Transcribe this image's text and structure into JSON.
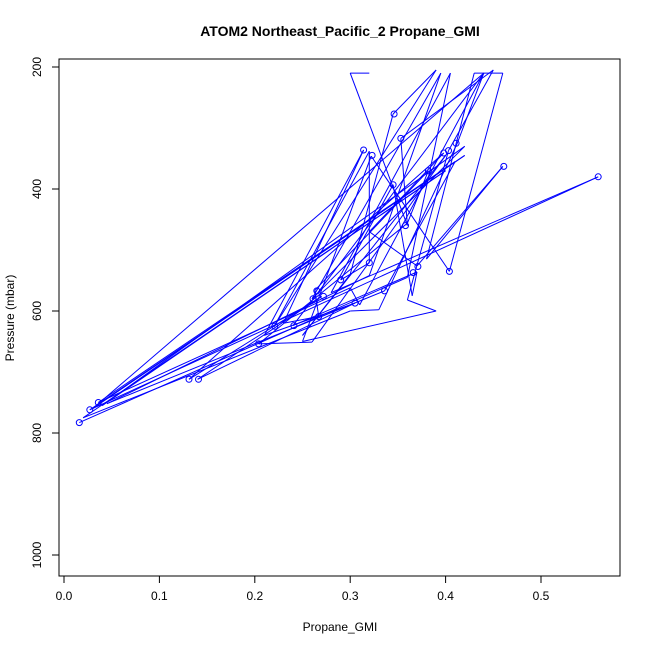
{
  "chart_data": {
    "type": "line",
    "title": "ATOM2 Northeast_Pacific_2 Propane_GMI",
    "xlabel": "Propane_GMI",
    "ylabel": "Pressure (mbar)",
    "xlim": [
      0.0,
      0.56
    ],
    "ylim": [
      1035,
      195
    ],
    "y_reversed": true,
    "x_ticks": [
      0.0,
      0.1,
      0.2,
      0.3,
      0.4,
      0.5
    ],
    "x_tick_labels": [
      "0.0",
      "0.1",
      "0.2",
      "0.3",
      "0.4",
      "0.5"
    ],
    "y_ticks": [
      200,
      400,
      600,
      800,
      1000
    ],
    "y_tick_labels": [
      "200",
      "400",
      "600",
      "800",
      "1000"
    ],
    "grid": false,
    "series_color": "#0000ff",
    "series": [
      {
        "points": [
          [
            0.016,
            783
          ],
          [
            0.36,
            545
          ],
          [
            0.405,
            210
          ],
          [
            0.28,
            570
          ],
          [
            0.56,
            380
          ],
          [
            0.027,
            762
          ],
          [
            0.42,
            345
          ],
          [
            0.03,
            760
          ],
          [
            0.44,
            210
          ],
          [
            0.31,
            590
          ],
          [
            0.3,
            562
          ],
          [
            0.036,
            750
          ],
          [
            0.41,
            355
          ],
          [
            0.336,
            567
          ],
          [
            0.045,
            752
          ],
          [
            0.32,
            542
          ],
          [
            0.395,
            210
          ],
          [
            0.26,
            580
          ],
          [
            0.42,
            330
          ],
          [
            0.04,
            755
          ],
          [
            0.4,
            370
          ],
          [
            0.02,
            775
          ],
          [
            0.3,
            600
          ],
          [
            0.33,
            598
          ],
          [
            0.412,
            326
          ],
          [
            0.44,
            210
          ],
          [
            0.24,
            624
          ],
          [
            0.37,
            536
          ],
          [
            0.365,
            575
          ],
          [
            0.345,
            393
          ],
          [
            0.29,
            549
          ],
          [
            0.32,
            521
          ],
          [
            0.32,
            338
          ],
          [
            0.22,
            626
          ],
          [
            0.39,
            205
          ],
          [
            0.345,
            277
          ],
          [
            0.3,
            540
          ],
          [
            0.25,
            640
          ],
          [
            0.4,
            345
          ],
          [
            0.26,
            651
          ],
          [
            0.204,
            654
          ],
          [
            0.36,
            456
          ],
          [
            0.382,
            370
          ],
          [
            0.263,
            566
          ],
          [
            0.267,
            609
          ],
          [
            0.23,
            620
          ],
          [
            0.314,
            336
          ],
          [
            0.21,
            640
          ],
          [
            0.305,
            587
          ],
          [
            0.14,
            712
          ],
          [
            0.27,
            576
          ],
          [
            0.131,
            712
          ],
          [
            0.398,
            341
          ],
          [
            0.32,
            470
          ],
          [
            0.37,
            526
          ],
          [
            0.46,
            363
          ],
          [
            0.38,
            515
          ],
          [
            0.43,
            210
          ],
          [
            0.46,
            210
          ],
          [
            0.404,
            535
          ],
          [
            0.322,
            346
          ],
          [
            0.25,
            650
          ],
          [
            0.39,
            600
          ],
          [
            0.36,
            582
          ],
          [
            0.403,
            337
          ],
          [
            0.45,
            205
          ],
          [
            0.353,
            317
          ],
          [
            0.36,
            460
          ],
          [
            0.3,
            210
          ],
          [
            0.32,
            210
          ]
        ]
      }
    ],
    "markers": [
      [
        0.016,
        783
      ],
      [
        0.027,
        762
      ],
      [
        0.036,
        750
      ],
      [
        0.131,
        712
      ],
      [
        0.141,
        712
      ],
      [
        0.204,
        654
      ],
      [
        0.221,
        625
      ],
      [
        0.241,
        624
      ],
      [
        0.261,
        580
      ],
      [
        0.267,
        609
      ],
      [
        0.265,
        567
      ],
      [
        0.272,
        576
      ],
      [
        0.29,
        549
      ],
      [
        0.305,
        587
      ],
      [
        0.314,
        336
      ],
      [
        0.32,
        521
      ],
      [
        0.323,
        345
      ],
      [
        0.336,
        567
      ],
      [
        0.345,
        393
      ],
      [
        0.346,
        277
      ],
      [
        0.353,
        317
      ],
      [
        0.358,
        460
      ],
      [
        0.366,
        537
      ],
      [
        0.371,
        527
      ],
      [
        0.382,
        370
      ],
      [
        0.398,
        341
      ],
      [
        0.403,
        337
      ],
      [
        0.404,
        535
      ],
      [
        0.411,
        325
      ],
      [
        0.461,
        363
      ],
      [
        0.56,
        380
      ]
    ]
  }
}
